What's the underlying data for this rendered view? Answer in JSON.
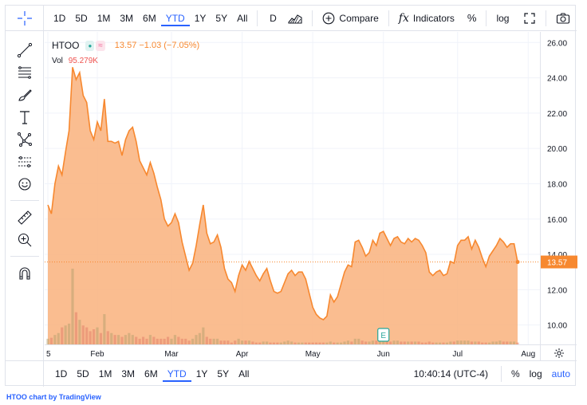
{
  "top_toolbar": {
    "ranges": [
      "1D",
      "5D",
      "1M",
      "3M",
      "6M",
      "YTD",
      "1Y",
      "5Y",
      "All"
    ],
    "active_range": "YTD",
    "interval": "D",
    "compare_label": "Compare",
    "indicators_label": "Indicators",
    "percent_label": "%",
    "log_label": "log"
  },
  "legend": {
    "symbol": "HTOO",
    "status_badge": "●",
    "delay_badge": "≈",
    "price_change": "13.57 −1.03 (−7.05%)",
    "volume_label": "Vol",
    "volume_value": "95.279K"
  },
  "last_price_label": "13.57",
  "bottom_toolbar": {
    "ranges": [
      "1D",
      "5D",
      "1M",
      "3M",
      "6M",
      "YTD",
      "1Y",
      "5Y",
      "All"
    ],
    "active_range": "YTD",
    "time": "10:40:14 (UTC-4)",
    "percent_label": "%",
    "log_label": "log",
    "auto_label": "auto"
  },
  "attribution": {
    "prefix": "HTOO chart by ",
    "brand": "TradingView"
  },
  "colors": {
    "line": "#f7882f",
    "fill": "#f9b27c",
    "accent": "#2962ff",
    "volume_up": "#d9a98a",
    "volume_down": "#e8a494",
    "badge_green": "#26a69a",
    "badge_pink": "#f48fb1"
  },
  "chart_data": {
    "type": "area",
    "symbol": "HTOO",
    "x_tick_labels": [
      "5",
      "Feb",
      "Mar",
      "Apr",
      "May",
      "Jun",
      "Jul",
      "Aug"
    ],
    "x_tick_index": [
      0,
      14,
      35,
      55,
      75,
      95,
      116,
      136
    ],
    "y_tick_labels": [
      "26.00",
      "24.00",
      "22.00",
      "20.00",
      "18.00",
      "16.00",
      "14.00",
      "12.00",
      "10.00"
    ],
    "ylim": [
      8.9,
      26.6
    ],
    "last_price": 13.57,
    "close": [
      16.8,
      16.3,
      18.0,
      19.0,
      18.5,
      19.8,
      21.0,
      24.6,
      23.9,
      24.3,
      23.0,
      22.6,
      21.0,
      20.5,
      21.5,
      21.0,
      22.8,
      20.4,
      20.4,
      20.3,
      20.4,
      19.6,
      20.5,
      21.0,
      21.2,
      20.4,
      19.3,
      18.9,
      18.5,
      19.2,
      18.6,
      17.8,
      17.1,
      16.0,
      15.6,
      15.8,
      16.3,
      15.8,
      14.7,
      13.9,
      13.1,
      13.5,
      14.5,
      15.7,
      16.8,
      15.2,
      14.6,
      14.7,
      15.1,
      14.4,
      13.2,
      12.6,
      12.4,
      11.9,
      12.8,
      13.4,
      13.1,
      13.6,
      13.2,
      12.8,
      12.5,
      12.9,
      13.2,
      12.5,
      11.9,
      11.8,
      11.9,
      12.4,
      12.9,
      13.1,
      12.8,
      13.0,
      13.0,
      12.6,
      11.8,
      11.0,
      10.6,
      10.4,
      10.3,
      10.5,
      11.7,
      11.3,
      11.6,
      12.3,
      13.0,
      13.4,
      13.3,
      14.7,
      14.8,
      14.4,
      13.9,
      14.1,
      14.8,
      14.5,
      15.2,
      15.3,
      14.9,
      14.5,
      14.9,
      15.0,
      14.7,
      14.6,
      14.9,
      14.7,
      14.9,
      14.8,
      14.5,
      14.1,
      13.0,
      12.8,
      13.0,
      13.1,
      12.8,
      12.9,
      13.6,
      13.5,
      14.5,
      14.8,
      14.8,
      15.0,
      14.3,
      14.8,
      14.4,
      13.8,
      13.3,
      13.9,
      14.2,
      14.5,
      14.9,
      14.7,
      14.4,
      14.6,
      14.6,
      13.57
    ],
    "volume": [
      0.3,
      0.35,
      0.5,
      0.6,
      0.9,
      1.0,
      1.1,
      4.0,
      1.7,
      1.3,
      1.0,
      0.9,
      0.7,
      0.8,
      0.9,
      0.6,
      1.6,
      0.7,
      0.6,
      0.5,
      0.5,
      0.4,
      0.5,
      0.6,
      0.5,
      0.4,
      0.3,
      0.4,
      0.3,
      0.5,
      0.4,
      0.3,
      0.3,
      0.3,
      0.4,
      0.3,
      0.5,
      0.4,
      0.3,
      0.3,
      0.2,
      0.3,
      0.5,
      0.6,
      0.9,
      0.4,
      0.3,
      0.3,
      0.3,
      0.2,
      0.2,
      0.2,
      0.1,
      0.2,
      0.3,
      0.2,
      0.2,
      0.2,
      0.15,
      0.1,
      0.1,
      0.15,
      0.15,
      0.1,
      0.1,
      0.1,
      0.1,
      0.15,
      0.2,
      0.15,
      0.1,
      0.1,
      0.1,
      0.1,
      0.1,
      0.1,
      0.1,
      0.1,
      0.1,
      0.1,
      0.15,
      0.1,
      0.1,
      0.1,
      0.15,
      0.2,
      0.15,
      0.3,
      0.3,
      0.2,
      0.15,
      0.15,
      0.2,
      0.2,
      0.25,
      0.3,
      0.2,
      0.15,
      0.2,
      0.2,
      0.15,
      0.15,
      0.15,
      0.15,
      0.15,
      0.15,
      0.1,
      0.1,
      0.15,
      0.1,
      0.1,
      0.1,
      0.1,
      0.1,
      0.15,
      0.15,
      0.2,
      0.2,
      0.2,
      0.2,
      0.15,
      0.15,
      0.15,
      0.1,
      0.1,
      0.1,
      0.15,
      0.15,
      0.2,
      0.15,
      0.15,
      0.15,
      0.15,
      0.1
    ],
    "volume_unit": "M",
    "earnings_marker": {
      "label": "E",
      "index": 95
    }
  }
}
